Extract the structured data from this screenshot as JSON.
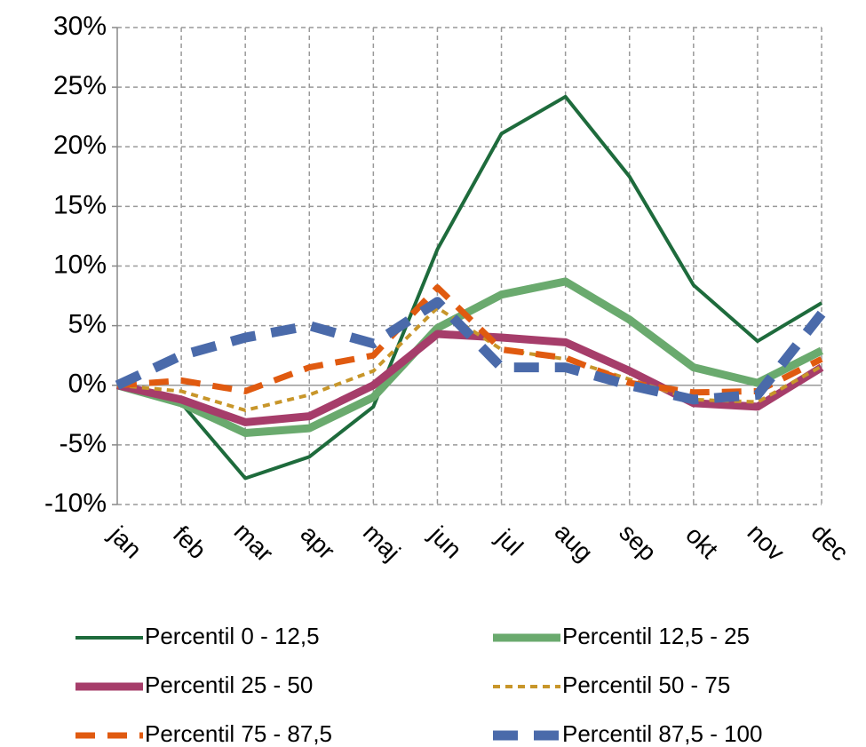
{
  "chart_data": {
    "type": "line",
    "categories": [
      "jan",
      "feb",
      "mar",
      "apr",
      "maj",
      "jun",
      "jul",
      "aug",
      "sep",
      "okt",
      "nov",
      "dec"
    ],
    "ylim": [
      -10,
      30
    ],
    "yticks": [
      {
        "value": -10,
        "label": "-10%"
      },
      {
        "value": -5,
        "label": "-5%"
      },
      {
        "value": 0,
        "label": "0%"
      },
      {
        "value": 5,
        "label": "5%"
      },
      {
        "value": 10,
        "label": "10%"
      },
      {
        "value": 15,
        "label": "15%"
      },
      {
        "value": 20,
        "label": "20%"
      },
      {
        "value": 25,
        "label": "25%"
      },
      {
        "value": 30,
        "label": "30%"
      }
    ],
    "grid": true,
    "legend": "bottom",
    "series": [
      {
        "name": "Percentil 0 - 12,5",
        "color": "#1e6b3c",
        "width": 4,
        "dash": "solid",
        "values": [
          0,
          -1.5,
          -7.8,
          -6.0,
          -1.8,
          11.4,
          21.1,
          24.2,
          17.5,
          8.4,
          3.7,
          6.9
        ]
      },
      {
        "name": "Percentil 12,5 - 25",
        "color": "#6aaa6e",
        "width": 9,
        "dash": "solid",
        "values": [
          0,
          -1.5,
          -4.0,
          -3.6,
          -1.0,
          4.8,
          7.6,
          8.7,
          5.5,
          1.5,
          0.2,
          2.9
        ]
      },
      {
        "name": "Percentil 25 - 50",
        "color": "#a63d6a",
        "width": 9,
        "dash": "solid",
        "values": [
          0,
          -1.2,
          -3.1,
          -2.6,
          0,
          4.3,
          4.0,
          3.6,
          1.2,
          -1.5,
          -1.8,
          1.5
        ]
      },
      {
        "name": "Percentil 50 - 75",
        "color": "#c8962a",
        "width": 4,
        "dash": "8 6",
        "values": [
          0,
          -0.5,
          -2.1,
          -0.8,
          1.2,
          6.5,
          3.0,
          2.2,
          0.5,
          -1.2,
          -1.4,
          1.6
        ]
      },
      {
        "name": "Percentil 75 - 87,5",
        "color": "#e05a10",
        "width": 7,
        "dash": "22 14",
        "values": [
          0,
          0.4,
          -0.5,
          1.5,
          2.5,
          8.2,
          3.0,
          2.3,
          0.2,
          -0.6,
          -0.5,
          2.2
        ]
      },
      {
        "name": "Percentil 87,5 - 100",
        "color": "#4a6aaa",
        "width": 11,
        "dash": "28 18",
        "values": [
          0,
          2.5,
          4.0,
          5.0,
          3.5,
          7.0,
          1.5,
          1.5,
          0,
          -1.2,
          -0.8,
          6.0
        ]
      }
    ]
  }
}
